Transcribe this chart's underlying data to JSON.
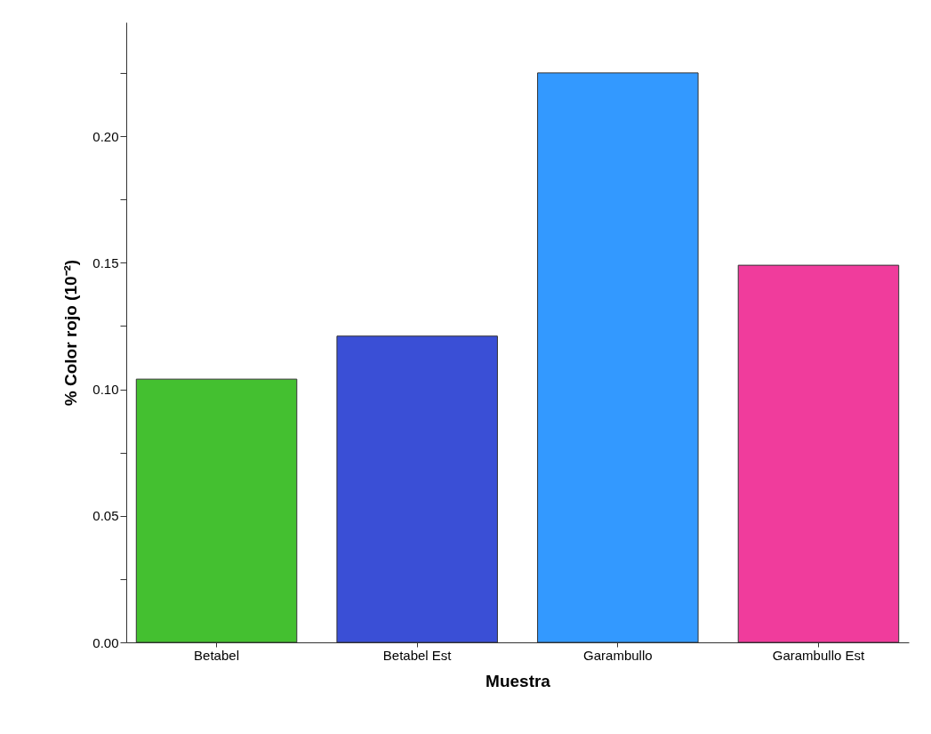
{
  "chart_data": {
    "type": "bar",
    "xlabel": "Muestra",
    "ylabel": "% Color rojo (10⁻²)",
    "categories": [
      "Betabel",
      "Betabel Est",
      "Garambullo",
      "Garambullo Est"
    ],
    "values": [
      0.104,
      0.121,
      0.225,
      0.149
    ],
    "colors": [
      "#44c030",
      "#3a4fd6",
      "#3399ff",
      "#f03c9c"
    ],
    "ylim": [
      0,
      0.245
    ],
    "yticks": [
      {
        "value": 0,
        "label": "0.00"
      },
      {
        "value": 0.025,
        "label": null
      },
      {
        "value": 0.05,
        "label": "0.05"
      },
      {
        "value": 0.075,
        "label": null
      },
      {
        "value": 0.1,
        "label": "0.10"
      },
      {
        "value": 0.125,
        "label": null
      },
      {
        "value": 0.15,
        "label": "0.15"
      },
      {
        "value": 0.175,
        "label": null
      },
      {
        "value": 0.2,
        "label": "0.20"
      },
      {
        "value": 0.225,
        "label": null
      }
    ],
    "grid": false,
    "legend": false
  }
}
